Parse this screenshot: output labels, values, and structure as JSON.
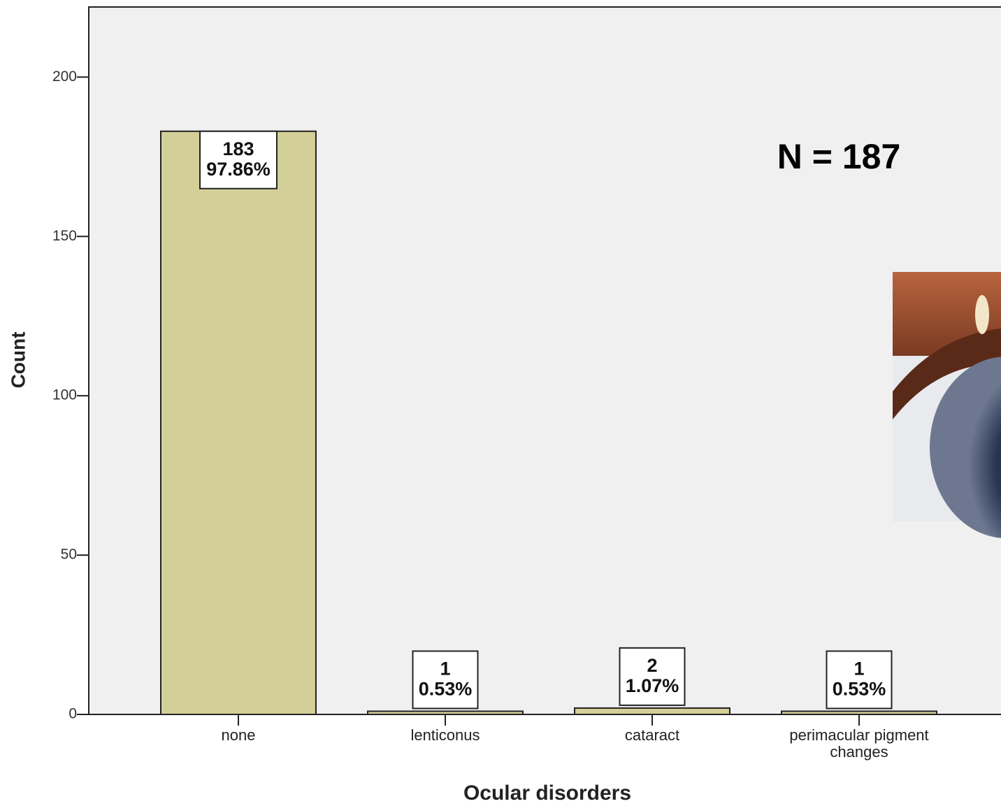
{
  "chart_data": {
    "type": "bar",
    "x_label": "Ocular disorders",
    "y_label": "Count",
    "annotation": "N = 187",
    "categories": [
      "none",
      "lenticonus",
      "cataract",
      "perimacular pigment changes"
    ],
    "values": [
      183,
      1,
      2,
      1
    ],
    "percent_labels": [
      "97.86%",
      "0.53%",
      "1.07%",
      "0.53%"
    ],
    "color": "#d3cf98",
    "ylim": [
      0,
      222
    ],
    "yticks": [
      0,
      50,
      100,
      150,
      200
    ]
  }
}
